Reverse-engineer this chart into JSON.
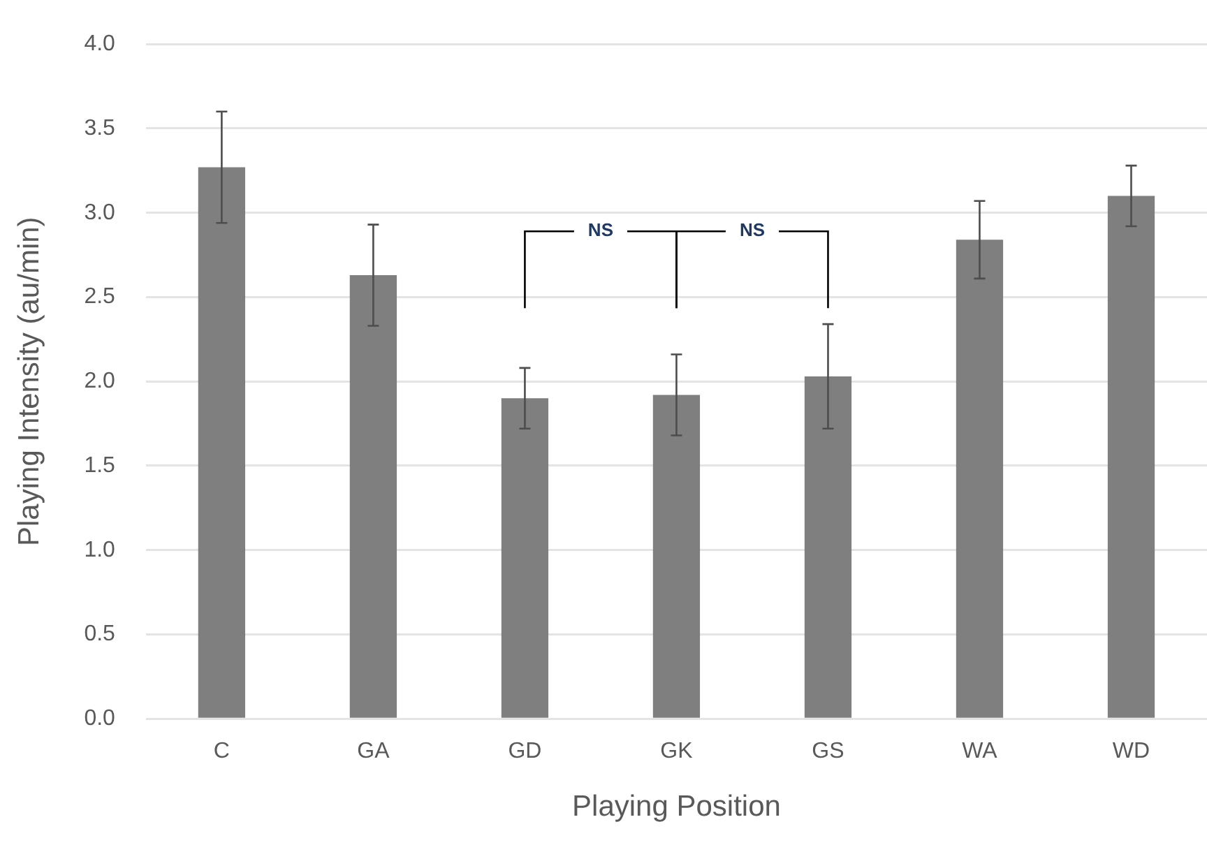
{
  "chart_data": {
    "type": "bar",
    "xlabel": "Playing Position",
    "ylabel": "Playing Intensity (au/min)",
    "categories": [
      "C",
      "GA",
      "GD",
      "GK",
      "GS",
      "WA",
      "WD"
    ],
    "values": [
      3.27,
      2.63,
      1.9,
      1.92,
      2.03,
      2.84,
      3.1
    ],
    "errors": [
      0.33,
      0.3,
      0.18,
      0.24,
      0.31,
      0.23,
      0.18
    ],
    "color": "#7f7f7f",
    "ylim": [
      0,
      4
    ],
    "yticks": [
      {
        "value": 0,
        "label": "0.0"
      },
      {
        "value": 0.5,
        "label": "0.5"
      },
      {
        "value": 1,
        "label": "1.0"
      },
      {
        "value": 1.5,
        "label": "1.5"
      },
      {
        "value": 2,
        "label": "2.0"
      },
      {
        "value": 2.5,
        "label": "2.5"
      },
      {
        "value": 3,
        "label": "3.0"
      },
      {
        "value": 3.5,
        "label": "3.5"
      },
      {
        "value": 4,
        "label": "4.0"
      }
    ],
    "grid": "y",
    "legend": false,
    "annotations": [
      "NS",
      "NS"
    ]
  }
}
